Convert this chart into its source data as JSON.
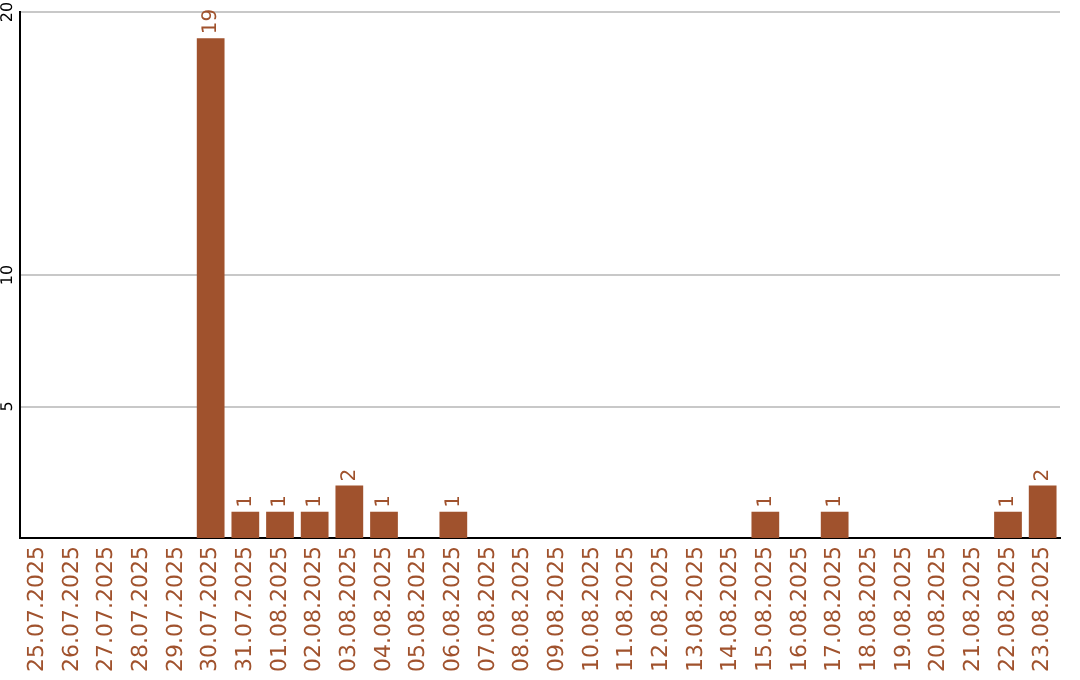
{
  "chart_data": {
    "type": "bar",
    "categories": [
      "25.07.2025",
      "26.07.2025",
      "27.07.2025",
      "28.07.2025",
      "29.07.2025",
      "30.07.2025",
      "31.07.2025",
      "01.08.2025",
      "02.08.2025",
      "03.08.2025",
      "04.08.2025",
      "05.08.2025",
      "06.08.2025",
      "07.08.2025",
      "08.08.2025",
      "09.08.2025",
      "10.08.2025",
      "11.08.2025",
      "12.08.2025",
      "13.08.2025",
      "14.08.2025",
      "15.08.2025",
      "16.08.2025",
      "17.08.2025",
      "18.08.2025",
      "19.08.2025",
      "20.08.2025",
      "21.08.2025",
      "22.08.2025",
      "23.08.2025"
    ],
    "values": [
      0,
      0,
      0,
      0,
      0,
      19,
      1,
      1,
      1,
      2,
      1,
      0,
      1,
      0,
      0,
      0,
      0,
      0,
      0,
      0,
      0,
      1,
      0,
      1,
      0,
      0,
      0,
      0,
      1,
      2
    ],
    "value_labels": [
      null,
      null,
      null,
      null,
      null,
      "19",
      "1",
      "1",
      "1",
      "2",
      "1",
      null,
      "1",
      null,
      null,
      null,
      null,
      null,
      null,
      null,
      null,
      "1",
      null,
      "1",
      null,
      null,
      null,
      null,
      "1",
      "2"
    ],
    "color": "#a0522d",
    "ylim": [
      0,
      20
    ],
    "yticks": [
      5,
      10,
      20
    ],
    "grid": "y",
    "legend": false
  }
}
